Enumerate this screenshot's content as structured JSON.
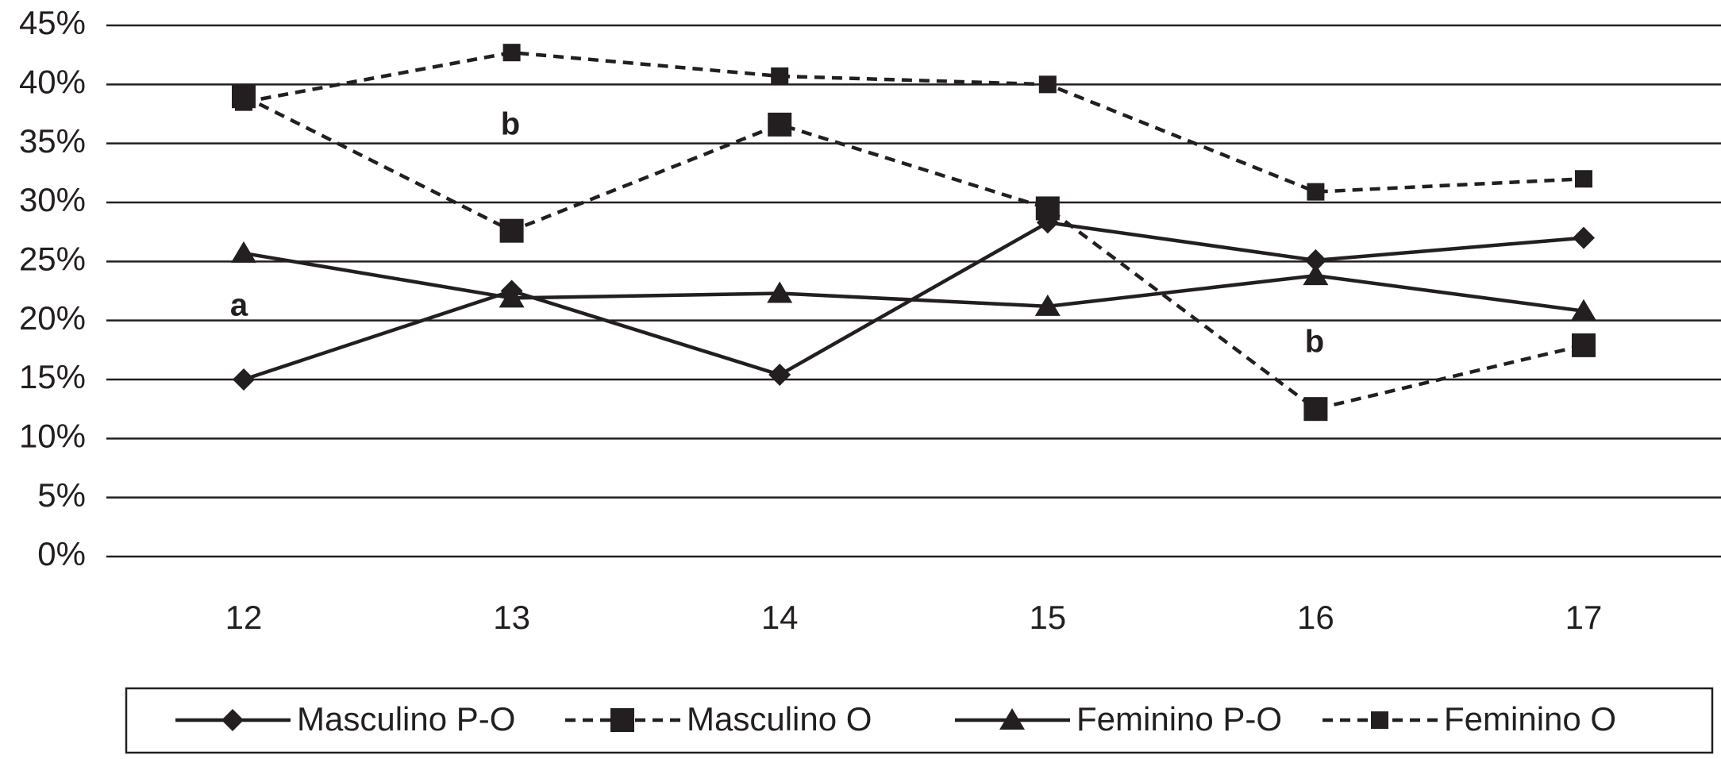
{
  "chart_data": {
    "type": "line",
    "categories": [
      "12",
      "13",
      "14",
      "15",
      "16",
      "17"
    ],
    "series": [
      {
        "name": "Masculino P-O",
        "color": "#231f20",
        "line": "solid",
        "marker": "diamond",
        "values": [
          15.0,
          22.5,
          15.4,
          28.3,
          25.1,
          27.0
        ]
      },
      {
        "name": "Masculino O",
        "color": "#231f20",
        "line": "dashed",
        "marker": "square",
        "values": [
          39.0,
          27.6,
          36.6,
          29.5,
          12.5,
          17.9
        ]
      },
      {
        "name": "Feminino P-O",
        "color": "#231f20",
        "line": "solid",
        "marker": "triangle",
        "values": [
          25.7,
          21.9,
          22.3,
          21.2,
          23.8,
          20.8
        ]
      },
      {
        "name": "Feminino O",
        "color": "#231f20",
        "line": "dashed",
        "marker": "small-square",
        "values": [
          38.5,
          42.7,
          40.7,
          40.0,
          30.9,
          32.0
        ]
      }
    ],
    "ylim": [
      0,
      45
    ],
    "yticks": [
      {
        "value": 0,
        "label": "0%"
      },
      {
        "value": 5,
        "label": "5%"
      },
      {
        "value": 10,
        "label": "10%"
      },
      {
        "value": 15,
        "label": "15%"
      },
      {
        "value": 20,
        "label": "20%"
      },
      {
        "value": 25,
        "label": "25%"
      },
      {
        "value": 30,
        "label": "30%"
      },
      {
        "value": 35,
        "label": "35%"
      },
      {
        "value": 40,
        "label": "40%"
      },
      {
        "value": 45,
        "label": "45%"
      }
    ],
    "grid": true,
    "legend": "bottom",
    "annotations": [
      "a",
      "b",
      "b"
    ]
  }
}
